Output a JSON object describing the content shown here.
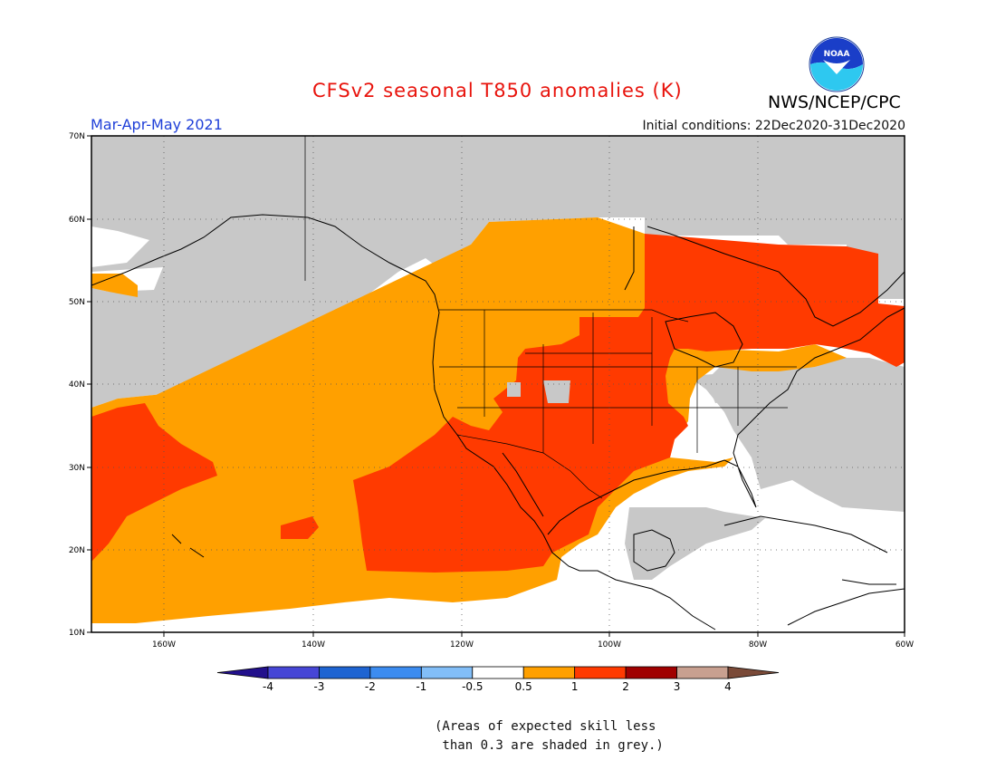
{
  "header": {
    "title": "CFSv2 seasonal T850 anomalies (K)",
    "agency": "NWS/NCEP/CPC",
    "season": "Mar-Apr-May 2021",
    "initial_conditions": "Initial conditions: 22Dec2020-31Dec2020"
  },
  "logo": {
    "text": "NOAA",
    "icon": "noaa-logo"
  },
  "map": {
    "lon_range": [
      -172,
      -60
    ],
    "lat_range": [
      10,
      70
    ],
    "lat_ticks": [
      "70N",
      "60N",
      "50N",
      "40N",
      "30N",
      "20N",
      "10N"
    ],
    "lon_ticks": [
      "160W",
      "140W",
      "120W",
      "100W",
      "80W",
      "60W"
    ],
    "grid": "dotted",
    "colors": {
      "skill_mask_grey": "#c8c8c8",
      "anom_0_5_to_1": "#ffa000",
      "anom_1_to_2": "#ff3a00",
      "no_signal": "#ffffff"
    }
  },
  "colorbar": {
    "labels": [
      "-4",
      "-3",
      "-2",
      "-1",
      "-0.5",
      "0.5",
      "1",
      "2",
      "3",
      "4"
    ],
    "colors": [
      "#22108c",
      "#4646d6",
      "#1e64d2",
      "#3c8cf0",
      "#82bef8",
      "#ffffff",
      "#ffa000",
      "#ff3a00",
      "#a00000",
      "#c8a090",
      "#7a4a38"
    ]
  },
  "note": {
    "line1": "(Areas of expected skill less",
    "line2": " than 0.3 are shaded in grey.)"
  }
}
